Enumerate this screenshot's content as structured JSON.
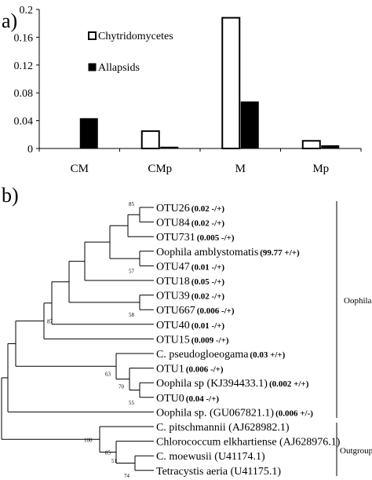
{
  "panel_a_label": "a)",
  "panel_b_label": "b)",
  "chart_data": {
    "type": "bar",
    "categories": [
      "CM",
      "CMp",
      "M",
      "Mp"
    ],
    "series": [
      {
        "name": "Chytridomycetes",
        "values": [
          0.0,
          0.025,
          0.188,
          0.011
        ],
        "color": "#ffffff"
      },
      {
        "name": "Allapsids",
        "values": [
          0.043,
          0.002,
          0.067,
          0.004
        ],
        "color": "#000000"
      }
    ],
    "yticks": [
      "0",
      "0.04",
      "0.08",
      "0.12",
      "0.16",
      "0.2"
    ],
    "ylim": [
      0,
      0.2
    ],
    "legend_position": "top-center",
    "grid": false
  },
  "tree": {
    "leaves": [
      {
        "name": "OTU26",
        "stat": "(0.02 -/+)"
      },
      {
        "name": "OTU84",
        "stat": "(0.02 -/+)"
      },
      {
        "name": "OTU731",
        "stat": "(0.005 -/+)"
      },
      {
        "name": "Oophila amblystomatis",
        "stat": "(99.77 +/+)"
      },
      {
        "name": "OTU47",
        "stat": "(0.01 -/+)"
      },
      {
        "name": "OTU18",
        "stat": "(0.05 -/+)"
      },
      {
        "name": "OTU39",
        "stat": "(0.02 -/+)"
      },
      {
        "name": "OTU667",
        "stat": "(0.006 -/+)"
      },
      {
        "name": "OTU40",
        "stat": "(0.01 -/+)"
      },
      {
        "name": "OTU15",
        "stat": "(0.009 -/+)"
      },
      {
        "name": "C. pseudogloeogama",
        "stat": "(0.03 +/+)"
      },
      {
        "name": "OTU1",
        "stat": "(0.006 -/+)"
      },
      {
        "name": "Oophila sp (KJ394433.1)",
        "stat": "(0.002 +/+)"
      },
      {
        "name": "OTU0",
        "stat": "(0.04 -/+)"
      },
      {
        "name": "Oophila sp. (GU067821.1)",
        "stat": "(0.006 +/-)"
      },
      {
        "name": "C. pitschmannii (AJ628982.1)",
        "stat": ""
      },
      {
        "name": "Chlorococcum elkhartiense (AJ628976.1)",
        "stat": ""
      },
      {
        "name": "C. moewusii (U41174.1)",
        "stat": ""
      },
      {
        "name": "Tetracystis aeria (U41175.1)",
        "stat": ""
      }
    ],
    "bootstraps": [
      "85",
      "57",
      "58",
      "87",
      "63",
      "70",
      "55",
      "100",
      "85",
      "51",
      "74"
    ],
    "groups": [
      "Oophila",
      "Outgroup"
    ]
  }
}
